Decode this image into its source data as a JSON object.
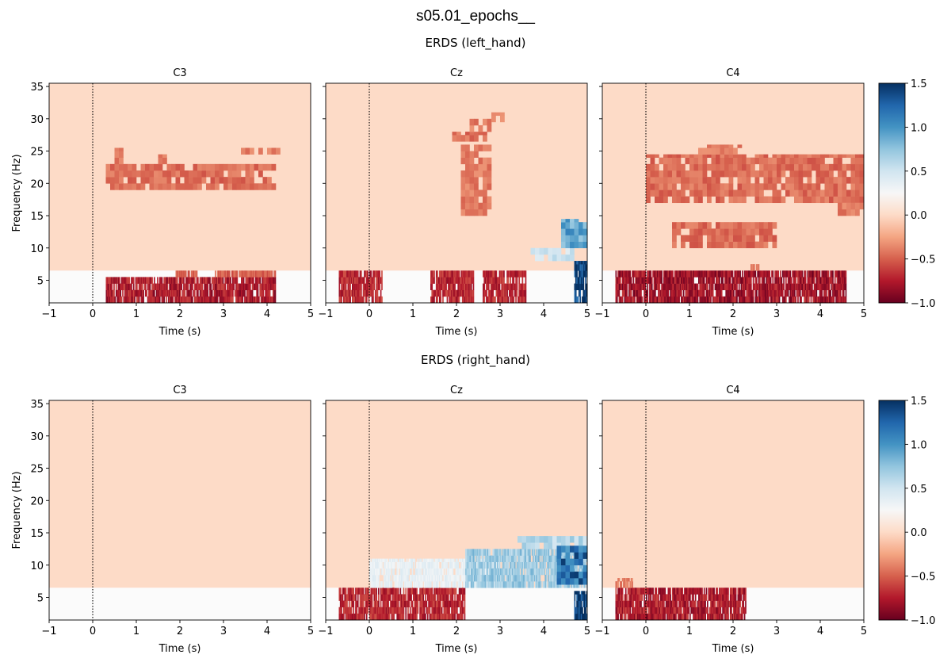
{
  "suptitle": "s05.01_epochs__",
  "rows": [
    {
      "title": "ERDS (left_hand)"
    },
    {
      "title": "ERDS (right_hand)"
    }
  ],
  "chart_data": [
    {
      "type": "heatmap",
      "condition": "left_hand",
      "title": "C3",
      "xlabel": "Time (s)",
      "ylabel": "Frequency (Hz)",
      "xlim": [
        -1,
        5
      ],
      "ylim": [
        1.5,
        35.5
      ],
      "xticks": [
        -1,
        0,
        1,
        2,
        3,
        4,
        5
      ],
      "yticks": [
        5,
        10,
        15,
        20,
        25,
        30,
        35
      ],
      "event_line_x": 0,
      "regions": [
        {
          "t": [
            0.3,
            4.2
          ],
          "f": [
            19,
            23
          ],
          "value": -0.45
        },
        {
          "t": [
            0.5,
            0.7
          ],
          "f": [
            23,
            25.5
          ],
          "value": -0.4
        },
        {
          "t": [
            1.5,
            1.7
          ],
          "f": [
            23,
            24.5
          ],
          "value": -0.4
        },
        {
          "t": [
            3.4,
            4.3
          ],
          "f": [
            24.5,
            25.5
          ],
          "value": -0.4
        },
        {
          "t": [
            0.3,
            4.2
          ],
          "f": [
            1.5,
            5.5
          ],
          "value": -0.75
        },
        {
          "t": [
            1.9,
            2.4
          ],
          "f": [
            5.5,
            6.5
          ],
          "value": -0.5
        },
        {
          "t": [
            2.8,
            4.2
          ],
          "f": [
            5.5,
            6.5
          ],
          "value": -0.5
        }
      ]
    },
    {
      "type": "heatmap",
      "condition": "left_hand",
      "title": "Cz",
      "xlabel": "Time (s)",
      "xlim": [
        -1,
        5
      ],
      "ylim": [
        1.5,
        35.5
      ],
      "xticks": [
        -1,
        0,
        1,
        2,
        3,
        4,
        5
      ],
      "yticks": [
        5,
        10,
        15,
        20,
        25,
        30,
        35
      ],
      "event_line_x": 0,
      "regions": [
        {
          "t": [
            -0.7,
            0.3
          ],
          "f": [
            1.5,
            6.5
          ],
          "value": -0.7
        },
        {
          "t": [
            1.4,
            2.4
          ],
          "f": [
            1.5,
            6.5
          ],
          "value": -0.7
        },
        {
          "t": [
            2.6,
            3.6
          ],
          "f": [
            1.5,
            6.5
          ],
          "value": -0.7
        },
        {
          "t": [
            1.9,
            2.7
          ],
          "f": [
            26.5,
            28
          ],
          "value": -0.45
        },
        {
          "t": [
            2.3,
            2.8
          ],
          "f": [
            28,
            30
          ],
          "value": -0.4
        },
        {
          "t": [
            2.8,
            3.1
          ],
          "f": [
            29.5,
            31
          ],
          "value": -0.4
        },
        {
          "t": [
            2.1,
            2.8
          ],
          "f": [
            15,
            26
          ],
          "value": -0.4
        },
        {
          "t": [
            3.7,
            4.7
          ],
          "f": [
            8,
            10
          ],
          "value": 0.5
        },
        {
          "t": [
            4.4,
            5.0
          ],
          "f": [
            10,
            14.5
          ],
          "value": 0.9
        },
        {
          "t": [
            4.7,
            5.0
          ],
          "f": [
            1.5,
            8
          ],
          "value": 1.5
        }
      ]
    },
    {
      "type": "heatmap",
      "condition": "left_hand",
      "title": "C4",
      "xlabel": "Time (s)",
      "xlim": [
        -1,
        5
      ],
      "ylim": [
        1.5,
        35.5
      ],
      "xticks": [
        -1,
        0,
        1,
        2,
        3,
        4,
        5
      ],
      "yticks": [
        5,
        10,
        15,
        20,
        25,
        30,
        35
      ],
      "event_line_x": 0,
      "colorbar": {
        "min": -1.0,
        "max": 1.5,
        "ticks": [
          -1.0,
          -0.5,
          0.0,
          0.5,
          1.0,
          1.5
        ]
      },
      "regions": [
        {
          "t": [
            0.0,
            5.0
          ],
          "f": [
            17,
            24.5
          ],
          "value": -0.45
        },
        {
          "t": [
            1.2,
            2.2
          ],
          "f": [
            24.5,
            26
          ],
          "value": -0.4
        },
        {
          "t": [
            0.6,
            3.0
          ],
          "f": [
            10,
            14
          ],
          "value": -0.45
        },
        {
          "t": [
            4.4,
            5.0
          ],
          "f": [
            15,
            17
          ],
          "value": -0.4
        },
        {
          "t": [
            -0.7,
            4.6
          ],
          "f": [
            1.5,
            6.5
          ],
          "value": -0.8
        },
        {
          "t": [
            2.4,
            2.6
          ],
          "f": [
            6.5,
            7.5
          ],
          "value": -0.4
        }
      ]
    },
    {
      "type": "heatmap",
      "condition": "right_hand",
      "title": "C3",
      "xlabel": "Time (s)",
      "ylabel": "Frequency (Hz)",
      "xlim": [
        -1,
        5
      ],
      "ylim": [
        1.5,
        35.5
      ],
      "xticks": [
        -1,
        0,
        1,
        2,
        3,
        4,
        5
      ],
      "yticks": [
        5,
        10,
        15,
        20,
        25,
        30,
        35
      ],
      "event_line_x": 0,
      "regions": []
    },
    {
      "type": "heatmap",
      "condition": "right_hand",
      "title": "Cz",
      "xlabel": "Time (s)",
      "xlim": [
        -1,
        5
      ],
      "ylim": [
        1.5,
        35.5
      ],
      "xticks": [
        -1,
        0,
        1,
        2,
        3,
        4,
        5
      ],
      "yticks": [
        5,
        10,
        15,
        20,
        25,
        30,
        35
      ],
      "event_line_x": 0,
      "regions": [
        {
          "t": [
            -0.7,
            2.2
          ],
          "f": [
            1.5,
            6.5
          ],
          "value": -0.7
        },
        {
          "t": [
            0.0,
            3.0
          ],
          "f": [
            6.5,
            11
          ],
          "value": 0.35
        },
        {
          "t": [
            2.2,
            5.0
          ],
          "f": [
            6.5,
            12.5
          ],
          "value": 0.7
        },
        {
          "t": [
            3.4,
            5.0
          ],
          "f": [
            12.5,
            14.5
          ],
          "value": 0.6
        },
        {
          "t": [
            4.3,
            5.0
          ],
          "f": [
            7,
            13
          ],
          "value": 1.2
        },
        {
          "t": [
            4.7,
            5.0
          ],
          "f": [
            1.5,
            6
          ],
          "value": 1.5
        }
      ]
    },
    {
      "type": "heatmap",
      "condition": "right_hand",
      "title": "C4",
      "xlabel": "Time (s)",
      "xlim": [
        -1,
        5
      ],
      "ylim": [
        1.5,
        35.5
      ],
      "xticks": [
        -1,
        0,
        1,
        2,
        3,
        4,
        5
      ],
      "yticks": [
        5,
        10,
        15,
        20,
        25,
        30,
        35
      ],
      "event_line_x": 0,
      "colorbar": {
        "min": -1.0,
        "max": 1.5,
        "ticks": [
          -1.0,
          -0.5,
          0.0,
          0.5,
          1.0,
          1.5
        ]
      },
      "regions": [
        {
          "t": [
            -0.7,
            2.3
          ],
          "f": [
            1.5,
            6.5
          ],
          "value": -0.75
        },
        {
          "t": [
            -0.7,
            -0.3
          ],
          "f": [
            6.5,
            8
          ],
          "value": -0.4
        }
      ]
    }
  ],
  "colorbars": [
    {
      "condition": "left_hand",
      "ticks": [
        "1.5",
        "1.0",
        "0.5",
        "0.0",
        "−0.5",
        "−1.0"
      ]
    },
    {
      "condition": "right_hand",
      "ticks": [
        "1.5",
        "1.0",
        "0.5",
        "0.0",
        "−0.5",
        "−1.0"
      ]
    }
  ]
}
